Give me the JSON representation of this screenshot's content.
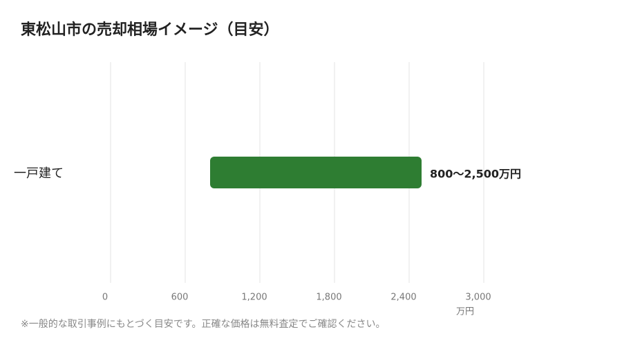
{
  "chart_data": {
    "type": "range-bar",
    "title": "東松山市の売却相場イメージ（目安）",
    "categories": [
      "一戸建て"
    ],
    "values": [
      [
        800,
        2500
      ]
    ],
    "value_labels": [
      "800〜2,500万円"
    ],
    "color": "#2e7d32",
    "xlim": [
      0,
      3000
    ],
    "xticks": [
      0,
      600,
      {
        "value": 1200,
        "label": "1,200"
      },
      {
        "value": 1800,
        "label": "1,800"
      },
      {
        "value": 2400,
        "label": "2,400"
      },
      {
        "value": 3000,
        "label": "3,000"
      }
    ],
    "x_axis_label": "万円",
    "grid": true,
    "footnote": "※一般的な取引事例にもとづく目安です。正確な価格は無料査定でご確認ください。"
  }
}
